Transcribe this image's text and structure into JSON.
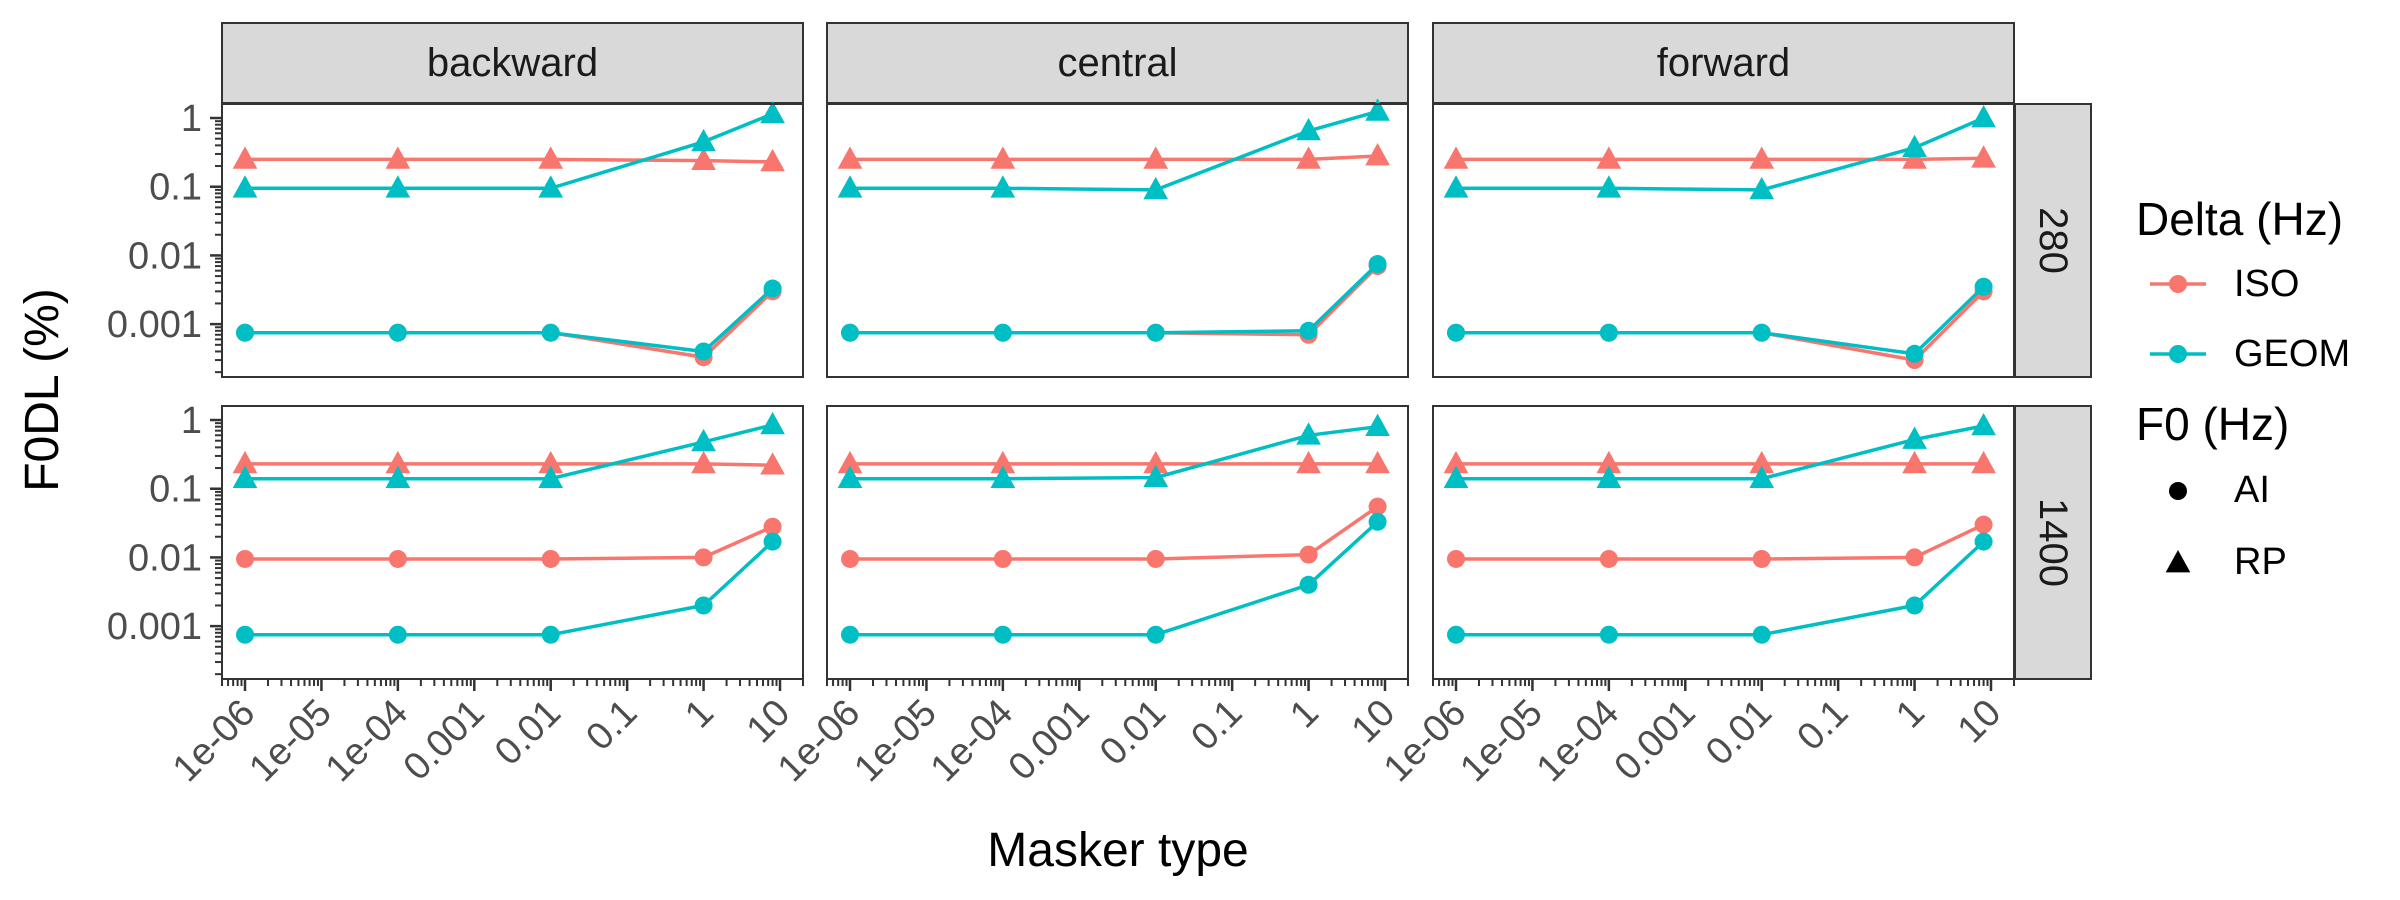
{
  "chart_data": {
    "type": "line",
    "xlabel": "Masker type",
    "ylabel": "F0DL (%)",
    "x_scale": "log",
    "y_scale": "log",
    "x_ticks": [
      1e-06,
      1e-05,
      0.0001,
      0.001,
      0.01,
      0.1,
      1,
      10
    ],
    "x_tick_labels": [
      "1e-06",
      "1e-05",
      "1e-04",
      "0.001",
      "0.01",
      "0.1",
      "1",
      "10"
    ],
    "y_ticks": [
      0.001,
      0.01,
      0.1,
      1
    ],
    "y_tick_labels": [
      "0.001",
      "0.01",
      "0.1",
      "1"
    ],
    "xlim": [
      5e-07,
      20
    ],
    "ylim": [
      0.00017,
      1.6
    ],
    "columns": [
      "backward",
      "central",
      "forward"
    ],
    "rows": [
      "280",
      "1400"
    ],
    "x": [
      1e-06,
      0.0001,
      0.01,
      1,
      8
    ],
    "legend": {
      "placement": "right",
      "color_title": "Delta (Hz)",
      "color_entries": [
        {
          "label": "ISO",
          "color": "#F8766D"
        },
        {
          "label": "GEOM",
          "color": "#00BFC4"
        }
      ],
      "shape_title": "F0 (Hz)",
      "shape_entries": [
        {
          "label": "AI",
          "shape": "circle"
        },
        {
          "label": "RP",
          "shape": "triangle"
        }
      ]
    },
    "panels": [
      {
        "column": "backward",
        "row": "280",
        "series": [
          {
            "delta": "ISO",
            "f0": "AI",
            "values": [
              0.00075,
              0.00075,
              0.00075,
              0.00033,
              0.003
            ]
          },
          {
            "delta": "GEOM",
            "f0": "AI",
            "values": [
              0.00075,
              0.00075,
              0.00075,
              0.0004,
              0.0033
            ]
          },
          {
            "delta": "ISO",
            "f0": "RP",
            "values": [
              0.25,
              0.25,
              0.25,
              0.24,
              0.23
            ]
          },
          {
            "delta": "GEOM",
            "f0": "RP",
            "values": [
              0.095,
              0.095,
              0.095,
              0.45,
              1.15
            ]
          }
        ]
      },
      {
        "column": "central",
        "row": "280",
        "series": [
          {
            "delta": "ISO",
            "f0": "AI",
            "values": [
              0.00075,
              0.00075,
              0.00075,
              0.0007,
              0.007
            ]
          },
          {
            "delta": "GEOM",
            "f0": "AI",
            "values": [
              0.00075,
              0.00075,
              0.00075,
              0.0008,
              0.0075
            ]
          },
          {
            "delta": "ISO",
            "f0": "RP",
            "values": [
              0.25,
              0.25,
              0.25,
              0.25,
              0.28
            ]
          },
          {
            "delta": "GEOM",
            "f0": "RP",
            "values": [
              0.095,
              0.095,
              0.09,
              0.65,
              1.25
            ]
          }
        ]
      },
      {
        "column": "forward",
        "row": "280",
        "series": [
          {
            "delta": "ISO",
            "f0": "AI",
            "values": [
              0.00075,
              0.00075,
              0.00075,
              0.0003,
              0.003
            ]
          },
          {
            "delta": "GEOM",
            "f0": "AI",
            "values": [
              0.00075,
              0.00075,
              0.00075,
              0.00037,
              0.0035
            ]
          },
          {
            "delta": "ISO",
            "f0": "RP",
            "values": [
              0.25,
              0.25,
              0.25,
              0.25,
              0.26
            ]
          },
          {
            "delta": "GEOM",
            "f0": "RP",
            "values": [
              0.095,
              0.095,
              0.09,
              0.37,
              1.0
            ]
          }
        ]
      },
      {
        "column": "backward",
        "row": "1400",
        "series": [
          {
            "delta": "ISO",
            "f0": "AI",
            "values": [
              0.0095,
              0.0095,
              0.0095,
              0.01,
              0.028
            ]
          },
          {
            "delta": "GEOM",
            "f0": "AI",
            "values": [
              0.00075,
              0.00075,
              0.00075,
              0.002,
              0.017
            ]
          },
          {
            "delta": "ISO",
            "f0": "RP",
            "values": [
              0.23,
              0.23,
              0.23,
              0.23,
              0.22
            ]
          },
          {
            "delta": "GEOM",
            "f0": "RP",
            "values": [
              0.14,
              0.14,
              0.14,
              0.48,
              0.85
            ]
          }
        ]
      },
      {
        "column": "central",
        "row": "1400",
        "series": [
          {
            "delta": "ISO",
            "f0": "AI",
            "values": [
              0.0095,
              0.0095,
              0.0095,
              0.011,
              0.055
            ]
          },
          {
            "delta": "GEOM",
            "f0": "AI",
            "values": [
              0.00075,
              0.00075,
              0.00075,
              0.004,
              0.033
            ]
          },
          {
            "delta": "ISO",
            "f0": "RP",
            "values": [
              0.23,
              0.23,
              0.23,
              0.23,
              0.23
            ]
          },
          {
            "delta": "GEOM",
            "f0": "RP",
            "values": [
              0.14,
              0.14,
              0.145,
              0.6,
              0.8
            ]
          }
        ]
      },
      {
        "column": "forward",
        "row": "1400",
        "series": [
          {
            "delta": "ISO",
            "f0": "AI",
            "values": [
              0.0095,
              0.0095,
              0.0095,
              0.01,
              0.03
            ]
          },
          {
            "delta": "GEOM",
            "f0": "AI",
            "values": [
              0.00075,
              0.00075,
              0.00075,
              0.002,
              0.017
            ]
          },
          {
            "delta": "ISO",
            "f0": "RP",
            "values": [
              0.23,
              0.23,
              0.23,
              0.23,
              0.23
            ]
          },
          {
            "delta": "GEOM",
            "f0": "RP",
            "values": [
              0.14,
              0.14,
              0.14,
              0.52,
              0.82
            ]
          }
        ]
      }
    ]
  }
}
